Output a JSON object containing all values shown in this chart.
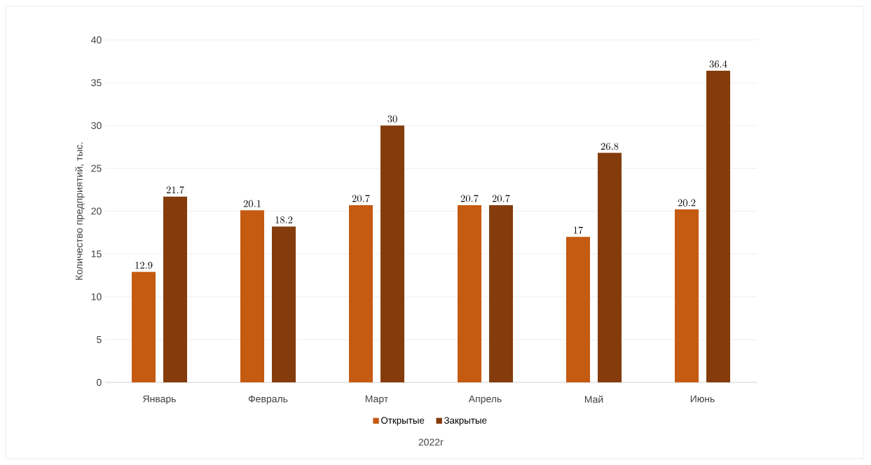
{
  "chart_data": {
    "type": "bar",
    "xlabel": "2022г",
    "ylabel": "Количество предприятий, тыс.",
    "categories": [
      "Январь",
      "Февраль",
      "Март",
      "Апрель",
      "Май",
      "Июнь"
    ],
    "series": [
      {
        "name": "Открытые",
        "color": "#c55a11",
        "values": [
          12.9,
          20.1,
          20.7,
          20.7,
          17,
          20.2
        ]
      },
      {
        "name": "Закрытые",
        "color": "#843c0c",
        "values": [
          21.7,
          18.2,
          30,
          20.7,
          26.8,
          36.4
        ]
      }
    ],
    "ylim": [
      0,
      40
    ],
    "yticks": [
      0,
      5,
      10,
      15,
      20,
      25,
      30,
      35,
      40
    ],
    "grid": "y",
    "legend": "bottom",
    "data_labels": true
  }
}
